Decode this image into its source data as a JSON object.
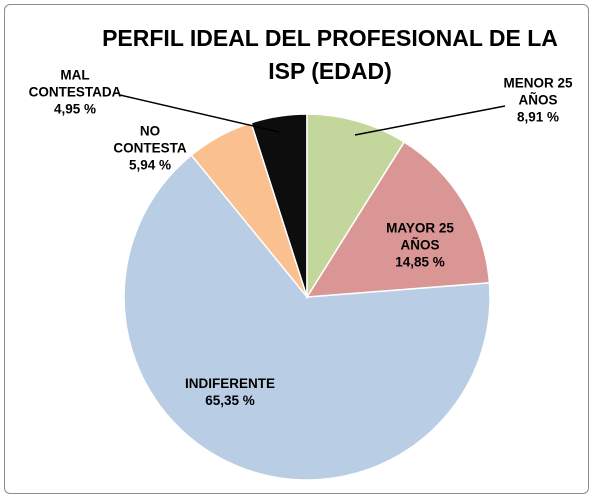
{
  "chart_data": {
    "type": "pie",
    "title": "PERFIL IDEAL DEL PROFESIONAL DE LA ISP (EDAD)",
    "categories": [
      "MENOR 25 AÑOS",
      "MAYOR 25 AÑOS",
      "INDIFERENTE",
      "NO CONTESTA",
      "MAL CONTESTADA"
    ],
    "values": [
      8.91,
      14.85,
      65.35,
      5.94,
      4.95
    ],
    "value_labels": [
      "8,91 %",
      "14,85 %",
      "65,35 %",
      "5,94 %",
      "4,95 %"
    ],
    "colors": [
      "#c3d69b",
      "#d99694",
      "#b9cde5",
      "#fac090",
      "#0d0d0d"
    ]
  }
}
